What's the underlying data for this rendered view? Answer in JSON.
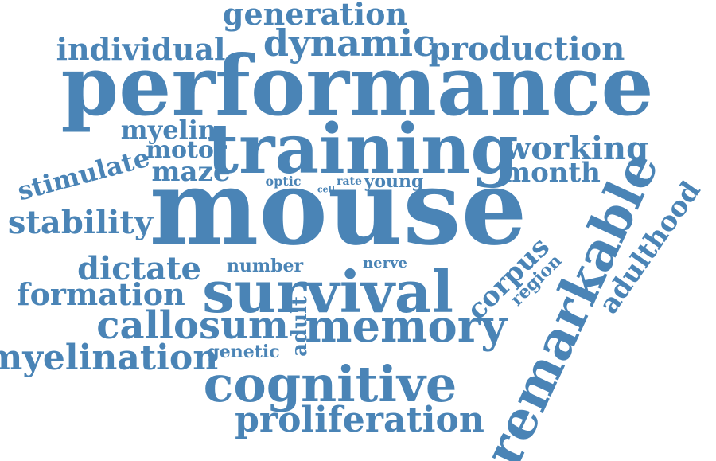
{
  "word_color": "#4a84b6",
  "words": [
    {
      "name": "word-generation",
      "text": "generation"
    },
    {
      "name": "word-individual",
      "text": "individual"
    },
    {
      "name": "word-dynamic",
      "text": "dynamic"
    },
    {
      "name": "word-production",
      "text": "production"
    },
    {
      "name": "word-performance",
      "text": "performance"
    },
    {
      "name": "word-myelin",
      "text": "myelin"
    },
    {
      "name": "word-training",
      "text": "training"
    },
    {
      "name": "word-working",
      "text": "working"
    },
    {
      "name": "word-stimulate",
      "text": "stimulate"
    },
    {
      "name": "word-motor",
      "text": "motor"
    },
    {
      "name": "word-maze",
      "text": "maze"
    },
    {
      "name": "word-month",
      "text": "month"
    },
    {
      "name": "word-optic",
      "text": "optic"
    },
    {
      "name": "word-cell",
      "text": "cell"
    },
    {
      "name": "word-rate",
      "text": "rate"
    },
    {
      "name": "word-young",
      "text": "young"
    },
    {
      "name": "word-mouse",
      "text": "mouse"
    },
    {
      "name": "word-stability",
      "text": "stability"
    },
    {
      "name": "word-remarkable",
      "text": "remarkable"
    },
    {
      "name": "word-adulthood",
      "text": "adulthood"
    },
    {
      "name": "word-dictate",
      "text": "dictate"
    },
    {
      "name": "word-number",
      "text": "number"
    },
    {
      "name": "word-nerve",
      "text": "nerve"
    },
    {
      "name": "word-corpus",
      "text": "corpus"
    },
    {
      "name": "word-region",
      "text": "region"
    },
    {
      "name": "word-formation",
      "text": "formation"
    },
    {
      "name": "word-survival",
      "text": "survival"
    },
    {
      "name": "word-adult",
      "text": "adult"
    },
    {
      "name": "word-callosum",
      "text": "callosum"
    },
    {
      "name": "word-memory",
      "text": "memory"
    },
    {
      "name": "word-myelination",
      "text": "myelination"
    },
    {
      "name": "word-genetic",
      "text": "genetic"
    },
    {
      "name": "word-cognitive",
      "text": "cognitive"
    },
    {
      "name": "word-proliferation",
      "text": "proliferation"
    }
  ]
}
